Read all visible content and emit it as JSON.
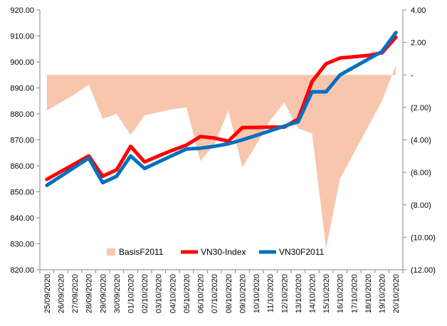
{
  "chart_data": {
    "type": "line",
    "title": "",
    "categories": [
      "25/09/2020",
      "26/09/2020",
      "27/09/2020",
      "28/09/2020",
      "29/09/2020",
      "30/09/2020",
      "01/10/2020",
      "02/10/2020",
      "03/10/2020",
      "04/10/2020",
      "05/10/2020",
      "06/10/2020",
      "07/10/2020",
      "08/10/2020",
      "09/10/2020",
      "10/10/2020",
      "11/10/2020",
      "12/10/2020",
      "13/10/2020",
      "14/10/2020",
      "15/10/2020",
      "16/10/2020",
      "17/10/2020",
      "18/10/2020",
      "19/10/2020",
      "20/10/2020"
    ],
    "left_axis": {
      "min": 820,
      "max": 920,
      "step": 10,
      "tick_labels": [
        "820.00",
        "830.00",
        "840.00",
        "850.00",
        "860.00",
        "870.00",
        "880.00",
        "890.00",
        "900.00",
        "910.00",
        "920.00"
      ]
    },
    "right_axis": {
      "min": -12,
      "max": 4,
      "step": 2,
      "tick_labels": [
        "(12.00)",
        "(10.00)",
        "(8.00)",
        "(6.00)",
        "(4.00)",
        "(2.00)",
        "-",
        "2.00",
        "4.00"
      ]
    },
    "series": [
      {
        "name": "BasisF2011",
        "type": "area",
        "axis": "right",
        "color": "#f8c6ad",
        "values": [
          -2.2,
          -1.7,
          -1.2,
          -0.6,
          -2.7,
          -2.4,
          -3.7,
          -2.5,
          -2.3,
          -2.1,
          -2.0,
          -5.3,
          -4.3,
          -2.2,
          -5.7,
          -4.3,
          -2.8,
          -1.7,
          -3.3,
          -3.6,
          -10.7,
          -6.4,
          -4.8,
          -3.2,
          -1.6,
          0.6
        ]
      },
      {
        "name": "VN30-Index",
        "type": "line",
        "axis": "left",
        "color": "#ff0000",
        "values": [
          854.8,
          857.8,
          860.8,
          863.8,
          856.0,
          858.5,
          867.5,
          861.5,
          863.8,
          866.0,
          868.0,
          871.3,
          870.7,
          869.5,
          874.7,
          874.8,
          874.9,
          874.9,
          878.0,
          892.5,
          899.3,
          901.5,
          902.0,
          902.5,
          903.5,
          909.5
        ]
      },
      {
        "name": "VN30F2011",
        "type": "line",
        "axis": "left",
        "color": "#0070c0",
        "values": [
          852.5,
          856.0,
          859.5,
          863.0,
          853.5,
          856.0,
          863.8,
          859.0,
          861.5,
          864.0,
          866.5,
          866.8,
          867.5,
          868.5,
          870.0,
          871.7,
          873.5,
          875.3,
          877.0,
          888.5,
          888.5,
          895.0,
          898.0,
          901.0,
          904.0,
          911.3
        ]
      }
    ],
    "legend": {
      "placement": "bottom-inside",
      "entries": [
        "BasisF2011",
        "VN30-Index",
        "VN30F2011"
      ]
    },
    "grid": false
  }
}
